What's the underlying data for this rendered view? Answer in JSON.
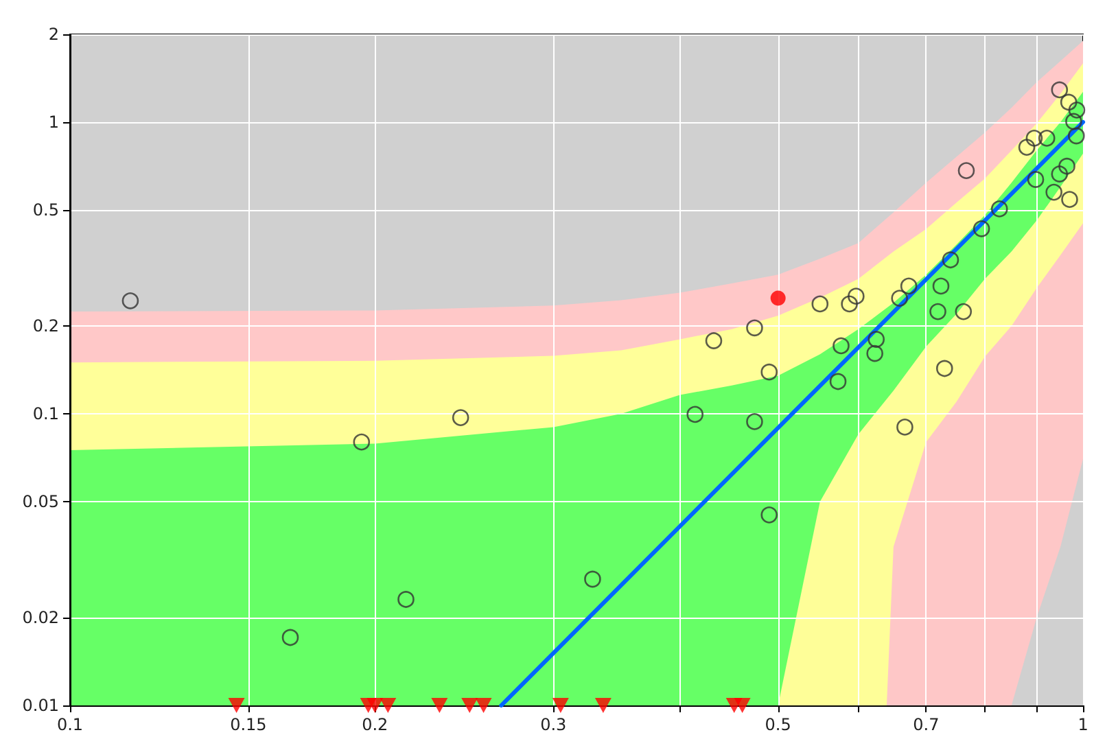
{
  "chart_data": {
    "type": "scatter",
    "log": "xy",
    "grid": true,
    "xlim": [
      0.1,
      1
    ],
    "xticks": [
      0.1,
      0.15,
      0.2,
      0.3,
      {
        "value": 0.4,
        "label": null
      },
      0.5,
      {
        "value": 0.6,
        "label": null
      },
      0.7,
      {
        "value": 0.8,
        "label": null
      },
      {
        "value": 0.9,
        "label": null
      },
      1
    ],
    "ylim": [
      0.01,
      2
    ],
    "yticks": [
      0.01,
      0.02,
      0.05,
      0.1,
      0.2,
      0.5,
      1,
      2
    ],
    "series": [
      {
        "type": "area",
        "color": "#ffc8c8",
        "x": [
          0.1,
          0.2,
          0.3,
          0.35,
          0.4,
          0.45,
          0.5,
          0.55,
          0.6,
          0.65,
          0.7,
          0.75,
          0.8,
          0.85,
          0.9,
          0.95,
          1
        ],
        "values": [
          0.224,
          0.226,
          0.235,
          0.245,
          0.26,
          0.28,
          0.3,
          0.34,
          0.385,
          0.49,
          0.62,
          0.76,
          0.92,
          1.12,
          1.37,
          1.62,
          1.9
        ]
      },
      {
        "type": "area",
        "color": "#ffff99",
        "x": [
          0.1,
          0.2,
          0.3,
          0.35,
          0.4,
          0.45,
          0.5,
          0.55,
          0.6,
          0.65,
          0.7,
          0.75,
          0.8,
          0.85,
          0.9,
          0.95,
          1
        ],
        "values": [
          0.15,
          0.152,
          0.158,
          0.165,
          0.18,
          0.195,
          0.217,
          0.25,
          0.29,
          0.36,
          0.43,
          0.53,
          0.64,
          0.8,
          0.99,
          1.25,
          1.59
        ]
      },
      {
        "type": "area",
        "color": "#66ff66",
        "x": [
          0.1,
          0.2,
          0.3,
          0.35,
          0.4,
          0.45,
          0.5,
          0.55,
          0.6,
          0.65,
          0.7,
          0.75,
          0.8,
          0.85,
          0.9,
          0.95,
          1
        ],
        "values": [
          0.075,
          0.079,
          0.09,
          0.1,
          0.116,
          0.125,
          0.135,
          0.16,
          0.195,
          0.24,
          0.3,
          0.38,
          0.48,
          0.62,
          0.8,
          1,
          1.27
        ]
      },
      {
        "type": "area",
        "color": "#fefe98",
        "x": [
          0.5,
          0.55,
          0.6,
          0.65,
          0.7,
          0.75,
          0.8,
          0.85,
          0.9,
          0.95,
          1
        ],
        "values": [
          0.01,
          0.05,
          0.085,
          0.12,
          0.17,
          0.22,
          0.29,
          0.36,
          0.46,
          0.6,
          0.78
        ]
      },
      {
        "type": "area",
        "color": "#fec7c7",
        "x": [
          0.64,
          0.65,
          0.7,
          0.75,
          0.8,
          0.85,
          0.9,
          0.95,
          1
        ],
        "values": [
          0.01,
          0.035,
          0.08,
          0.11,
          0.157,
          0.2,
          0.27,
          0.35,
          0.45
        ]
      },
      {
        "type": "area",
        "color": "#d0d0d0",
        "x": [
          0.85,
          0.9,
          0.95,
          1
        ],
        "values": [
          0.01,
          0.02,
          0.035,
          0.07
        ]
      },
      {
        "type": "line",
        "color": "#0066ff",
        "marker": "none",
        "x": [
          0.2665,
          1
        ],
        "values": [
          0.01,
          1
        ]
      },
      {
        "type": "scatter",
        "color": "#333333",
        "marker": "circle",
        "x": [
          0.1147,
          0.165,
          0.194,
          0.2146,
          0.243,
          0.328,
          0.414,
          0.474,
          0.49,
          0.49,
          0.573,
          0.667,
          0.73,
          0.432,
          0.474,
          0.55,
          0.588,
          0.597,
          0.577,
          0.625,
          0.623,
          0.659,
          0.673,
          0.724,
          0.719,
          0.762,
          0.74,
          0.794,
          0.827,
          0.767,
          0.88,
          0.895,
          0.921,
          0.898,
          0.936,
          0.948,
          0.964,
          0.97,
          0.948,
          0.968,
          0.986,
          0.979,
          0.985
        ],
        "values": [
          0.244,
          0.0171,
          0.08,
          0.0231,
          0.097,
          0.0271,
          0.0995,
          0.094,
          0.139,
          0.045,
          0.129,
          0.09,
          0.143,
          0.178,
          0.197,
          0.238,
          0.238,
          0.253,
          0.171,
          0.18,
          0.161,
          0.249,
          0.274,
          0.274,
          0.224,
          0.224,
          0.337,
          0.431,
          0.504,
          0.682,
          0.82,
          0.881,
          0.881,
          0.636,
          0.575,
          0.664,
          0.706,
          0.543,
          1.29,
          1.17,
          1.1,
          1.005,
          0.897
        ]
      },
      {
        "type": "scatter",
        "color": "#ff0000",
        "marker": "circle",
        "x": [
          0.5
        ],
        "values": [
          0.249
        ]
      },
      {
        "type": "scatter",
        "color": "#ff0000",
        "marker": "triangle",
        "x": [
          0.146,
          0.197,
          0.2,
          0.206,
          0.2316,
          0.248,
          0.256,
          0.305,
          0.336,
          0.4525,
          0.461
        ],
        "values": [
          0.01,
          0.01,
          0.01,
          0.01,
          0.01,
          0.01,
          0.01,
          0.01,
          0.01,
          0.01,
          0.01
        ]
      }
    ]
  }
}
